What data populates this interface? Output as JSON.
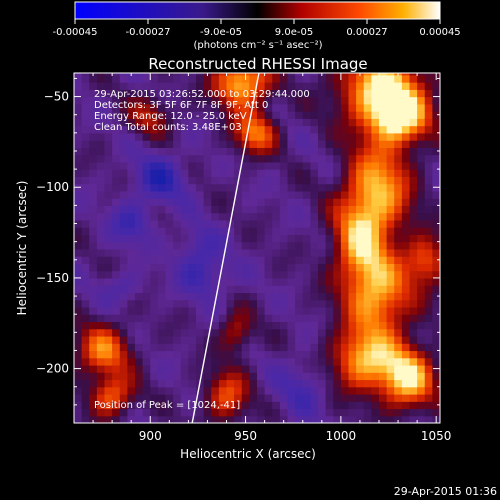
{
  "colorbar": {
    "tick_labels": [
      "-0.00045",
      "-0.00027",
      "-9.0e-05",
      "9.0e-05",
      "0.00027",
      "0.00045"
    ],
    "tick_values": [
      -0.00045,
      -0.00027,
      -9e-05,
      9e-05,
      0.00027,
      0.00045
    ],
    "range": [
      -0.00045,
      0.00045
    ],
    "units_label": "(photons cm⁻² s⁻¹ asec⁻²)"
  },
  "chart_data": {
    "type": "heatmap",
    "title": "Reconstructed RHESSI Image",
    "xlabel": "Heliocentric X (arcsec)",
    "ylabel": "Heliocentric Y (arcsec)",
    "xlim": [
      860,
      1052
    ],
    "ylim": [
      -230,
      -37
    ],
    "x_ticks": [
      900,
      950,
      1000,
      1050
    ],
    "y_ticks": [
      -50,
      -100,
      -150,
      -200
    ],
    "x_tick_labels": [
      "900",
      "950",
      "1000",
      "1050"
    ],
    "y_tick_labels": [
      "−50",
      "−100",
      "−150",
      "−200"
    ],
    "info_lines": [
      "29-Apr-2015 03:26:52.000 to 03:29:44.000",
      "Detectors: 3F 5F 6F 7F 8F 9F, Att 0",
      "Energy Range: 12.0 - 25.0 keV",
      "Clean    Total counts: 3.48E+03"
    ],
    "peak_label": "Position of Peak = [1024,-41]",
    "limb_line": [
      [
        922,
        -230
      ],
      [
        957,
        -37
      ]
    ],
    "sources": [
      {
        "x": 1022,
        "y": -45,
        "sx": 16,
        "sy": 14,
        "a": 1.0
      },
      {
        "x": 1030,
        "y": -62,
        "sx": 11,
        "sy": 10,
        "a": 0.85
      },
      {
        "x": 1020,
        "y": -100,
        "sx": 12,
        "sy": 18,
        "a": 0.8
      },
      {
        "x": 1010,
        "y": -130,
        "sx": 10,
        "sy": 18,
        "a": 0.75
      },
      {
        "x": 1020,
        "y": -160,
        "sx": 12,
        "sy": 16,
        "a": 0.8
      },
      {
        "x": 1012,
        "y": -195,
        "sx": 12,
        "sy": 12,
        "a": 0.85
      },
      {
        "x": 1035,
        "y": -205,
        "sx": 10,
        "sy": 12,
        "a": 0.95
      },
      {
        "x": 1045,
        "y": -140,
        "sx": 8,
        "sy": 10,
        "a": 0.6
      },
      {
        "x": 948,
        "y": -42,
        "sx": 10,
        "sy": 10,
        "a": 0.95
      },
      {
        "x": 955,
        "y": -70,
        "sx": 8,
        "sy": 8,
        "a": 0.7
      },
      {
        "x": 875,
        "y": -190,
        "sx": 10,
        "sy": 10,
        "a": 0.7
      },
      {
        "x": 880,
        "y": -215,
        "sx": 8,
        "sy": 8,
        "a": 0.65
      },
      {
        "x": 940,
        "y": -215,
        "sx": 8,
        "sy": 10,
        "a": 0.6
      },
      {
        "x": 945,
        "y": -180,
        "sx": 6,
        "sy": 8,
        "a": 0.45
      },
      {
        "x": 900,
        "y": -60,
        "sx": 8,
        "sy": 8,
        "a": 0.4
      }
    ],
    "holes": [
      {
        "x": 905,
        "y": -95,
        "sx": 10,
        "sy": 10,
        "a": 0.55
      },
      {
        "x": 890,
        "y": -120,
        "sx": 8,
        "sy": 8,
        "a": 0.45
      },
      {
        "x": 925,
        "y": -135,
        "sx": 8,
        "sy": 10,
        "a": 0.4
      },
      {
        "x": 930,
        "y": -150,
        "sx": 10,
        "sy": 8,
        "a": 0.35
      },
      {
        "x": 980,
        "y": -210,
        "sx": 10,
        "sy": 12,
        "a": 0.35
      },
      {
        "x": 885,
        "y": -155,
        "sx": 8,
        "sy": 6,
        "a": 0.3
      }
    ]
  },
  "footer": {
    "timestamp": "29-Apr-2015 01:36"
  }
}
